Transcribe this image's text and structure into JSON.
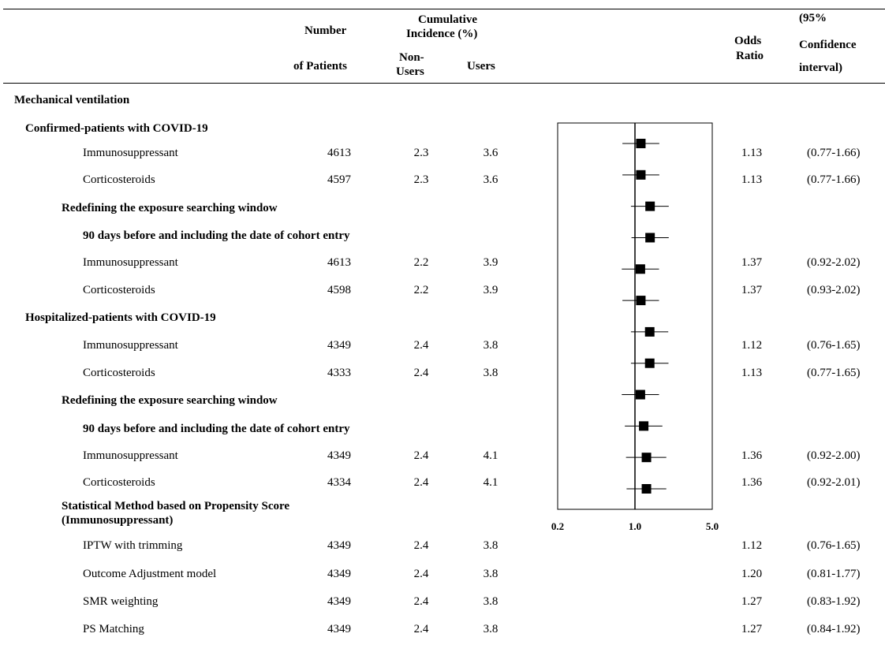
{
  "header": {
    "number_line1": "Number",
    "number_line2": "of Patients",
    "cumulative_line1": "Cumulative",
    "cumulative_line2": "Incidence (%)",
    "nonusers_line1": "Non-",
    "nonusers_line2": "Users",
    "users": "Users",
    "odds_line1": "Odds",
    "odds_line2": "Ratio",
    "ci_line1": "(95%",
    "ci_line2": "Confidence",
    "ci_line3": "interval)"
  },
  "rows": [
    {
      "label": "Mechanical ventilation",
      "level": 0,
      "bold": true
    },
    {
      "label": "Confirmed-patients with COVID-19",
      "level": 1,
      "bold": true
    },
    {
      "label": "Immunosuppressant",
      "level": 3,
      "n": "4613",
      "non_users": "2.3",
      "users": "3.6",
      "or": "1.13",
      "ci": "(0.77-1.66)"
    },
    {
      "label": "Corticosteroids",
      "level": 3,
      "n": "4597",
      "non_users": "2.3",
      "users": "3.6",
      "or": "1.13",
      "ci": "(0.77-1.66)"
    },
    {
      "label": "Redefining the exposure searching window",
      "level": 2,
      "bold": true
    },
    {
      "label": "90 days before and including the date of cohort entry",
      "level": 3,
      "bold": true
    },
    {
      "label": "Immunosuppressant",
      "level": 3,
      "n": "4613",
      "non_users": "2.2",
      "users": "3.9",
      "or": "1.37",
      "ci": "(0.92-2.02)"
    },
    {
      "label": "Corticosteroids",
      "level": 3,
      "n": "4598",
      "non_users": "2.2",
      "users": "3.9",
      "or": "1.37",
      "ci": "(0.93-2.02)"
    },
    {
      "label": "Hospitalized-patients with COVID-19",
      "level": 1,
      "bold": true
    },
    {
      "label": "Immunosuppressant",
      "level": 3,
      "n": "4349",
      "non_users": "2.4",
      "users": "3.8",
      "or": "1.12",
      "ci": "(0.76-1.65)"
    },
    {
      "label": "Corticosteroids",
      "level": 3,
      "n": "4333",
      "non_users": "2.4",
      "users": "3.8",
      "or": "1.13",
      "ci": "(0.77-1.65)"
    },
    {
      "label": "Redefining the exposure searching window",
      "level": 2,
      "bold": true
    },
    {
      "label": "90 days before and including the date of cohort entry",
      "level": 3,
      "bold": true
    },
    {
      "label": "Immunosuppressant",
      "level": 3,
      "n": "4349",
      "non_users": "2.4",
      "users": "4.1",
      "or": "1.36",
      "ci": "(0.92-2.00)"
    },
    {
      "label": "Corticosteroids",
      "level": 3,
      "n": "4334",
      "non_users": "2.4",
      "users": "4.1",
      "or": "1.36",
      "ci": "(0.92-2.01)"
    },
    {
      "label": "Statistical Method based on Propensity Score",
      "label2": "(Immunosuppressant)",
      "level": 2,
      "bold": true
    },
    {
      "label": "IPTW with trimming",
      "level": 3,
      "n": "4349",
      "non_users": "2.4",
      "users": "3.8",
      "or": "1.12",
      "ci": "(0.76-1.65)"
    },
    {
      "label": "Outcome Adjustment model",
      "level": 3,
      "n": "4349",
      "non_users": "2.4",
      "users": "3.8",
      "or": "1.20",
      "ci": "(0.81-1.77)"
    },
    {
      "label": "SMR weighting",
      "level": 3,
      "n": "4349",
      "non_users": "2.4",
      "users": "3.8",
      "or": "1.27",
      "ci": "(0.83-1.92)"
    },
    {
      "label": "PS Matching",
      "level": 3,
      "n": "4349",
      "non_users": "2.4",
      "users": "3.8",
      "or": "1.27",
      "ci": "(0.84-1.92)"
    }
  ],
  "chart_data": {
    "type": "scatter",
    "title": "",
    "xlabel": "",
    "ylabel": "",
    "x_scale": "log",
    "xlim": [
      0.2,
      5.0
    ],
    "x_ticks": [
      "0.2",
      "1.0",
      "5.0"
    ],
    "reference_line": 1.0,
    "marker": "square",
    "marker_color": "#000000",
    "points": [
      {
        "or": 1.13,
        "lo": 0.77,
        "hi": 1.66
      },
      {
        "or": 1.13,
        "lo": 0.77,
        "hi": 1.66
      },
      {
        "or": 1.37,
        "lo": 0.92,
        "hi": 2.02
      },
      {
        "or": 1.37,
        "lo": 0.93,
        "hi": 2.02
      },
      {
        "or": 1.12,
        "lo": 0.76,
        "hi": 1.65
      },
      {
        "or": 1.13,
        "lo": 0.77,
        "hi": 1.65
      },
      {
        "or": 1.36,
        "lo": 0.92,
        "hi": 2.0
      },
      {
        "or": 1.36,
        "lo": 0.92,
        "hi": 2.01
      },
      {
        "or": 1.12,
        "lo": 0.76,
        "hi": 1.65
      },
      {
        "or": 1.2,
        "lo": 0.81,
        "hi": 1.77
      },
      {
        "or": 1.27,
        "lo": 0.83,
        "hi": 1.92
      },
      {
        "or": 1.27,
        "lo": 0.84,
        "hi": 1.92
      }
    ]
  }
}
